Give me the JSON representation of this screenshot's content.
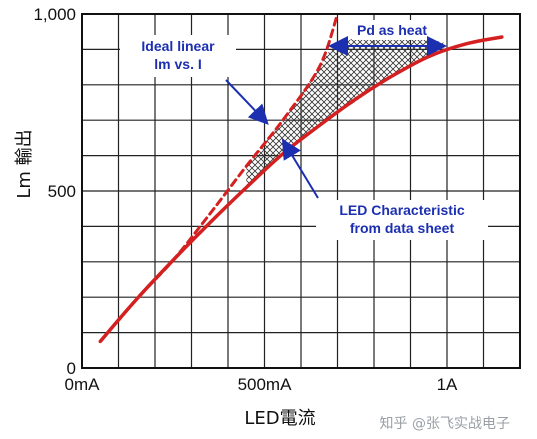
{
  "chart_data": {
    "type": "line",
    "title": "",
    "xlabel": "LED電流",
    "ylabel": "Lm 輸出",
    "x_unit": "mA",
    "xlim": [
      0,
      1200
    ],
    "ylim": [
      0,
      1000
    ],
    "x_tick_labels": [
      {
        "x": 0,
        "label": "0mA"
      },
      {
        "x": 500,
        "label": "500mA"
      },
      {
        "x": 1000,
        "label": "1A"
      }
    ],
    "y_tick_labels": [
      {
        "y": 0,
        "label": "0"
      },
      {
        "y": 500,
        "label": "500"
      },
      {
        "y": 1000,
        "label": "1,000"
      }
    ],
    "grid": true,
    "series": [
      {
        "name": "LED Characteristic from data sheet",
        "color": "#d42020",
        "style": "solid",
        "x": [
          50,
          150,
          250,
          350,
          450,
          550,
          650,
          750,
          850,
          950,
          1050,
          1150
        ],
        "y": [
          75,
          195,
          305,
          410,
          510,
          605,
          685,
          760,
          825,
          880,
          915,
          935
        ]
      },
      {
        "name": "Ideal linear lm vs. I",
        "color": "#d42020",
        "style": "dashed",
        "x": [
          50,
          150,
          250,
          350,
          450,
          550,
          650,
          700
        ],
        "y": [
          75,
          195,
          305,
          435,
          570,
          700,
          850,
          1000
        ]
      }
    ],
    "shaded_region": {
      "label": "Pd as heat",
      "pattern": "crosshatch",
      "x": [
        450,
        550,
        650,
        680,
        760,
        850,
        920,
        990
      ],
      "upper": [
        570,
        700,
        850,
        900,
        940,
        945,
        935,
        920
      ],
      "lower": [
        510,
        605,
        685,
        705,
        760,
        825,
        865,
        900
      ]
    },
    "annotations": [
      {
        "id": "ideal",
        "lines": [
          "Ideal linear",
          "lm vs. I"
        ]
      },
      {
        "id": "heat",
        "lines": [
          "Pd as heat"
        ]
      },
      {
        "id": "led",
        "lines": [
          "LED Characteristic",
          "from data sheet"
        ]
      }
    ]
  },
  "watermark": "知乎 @张飞实战电子"
}
